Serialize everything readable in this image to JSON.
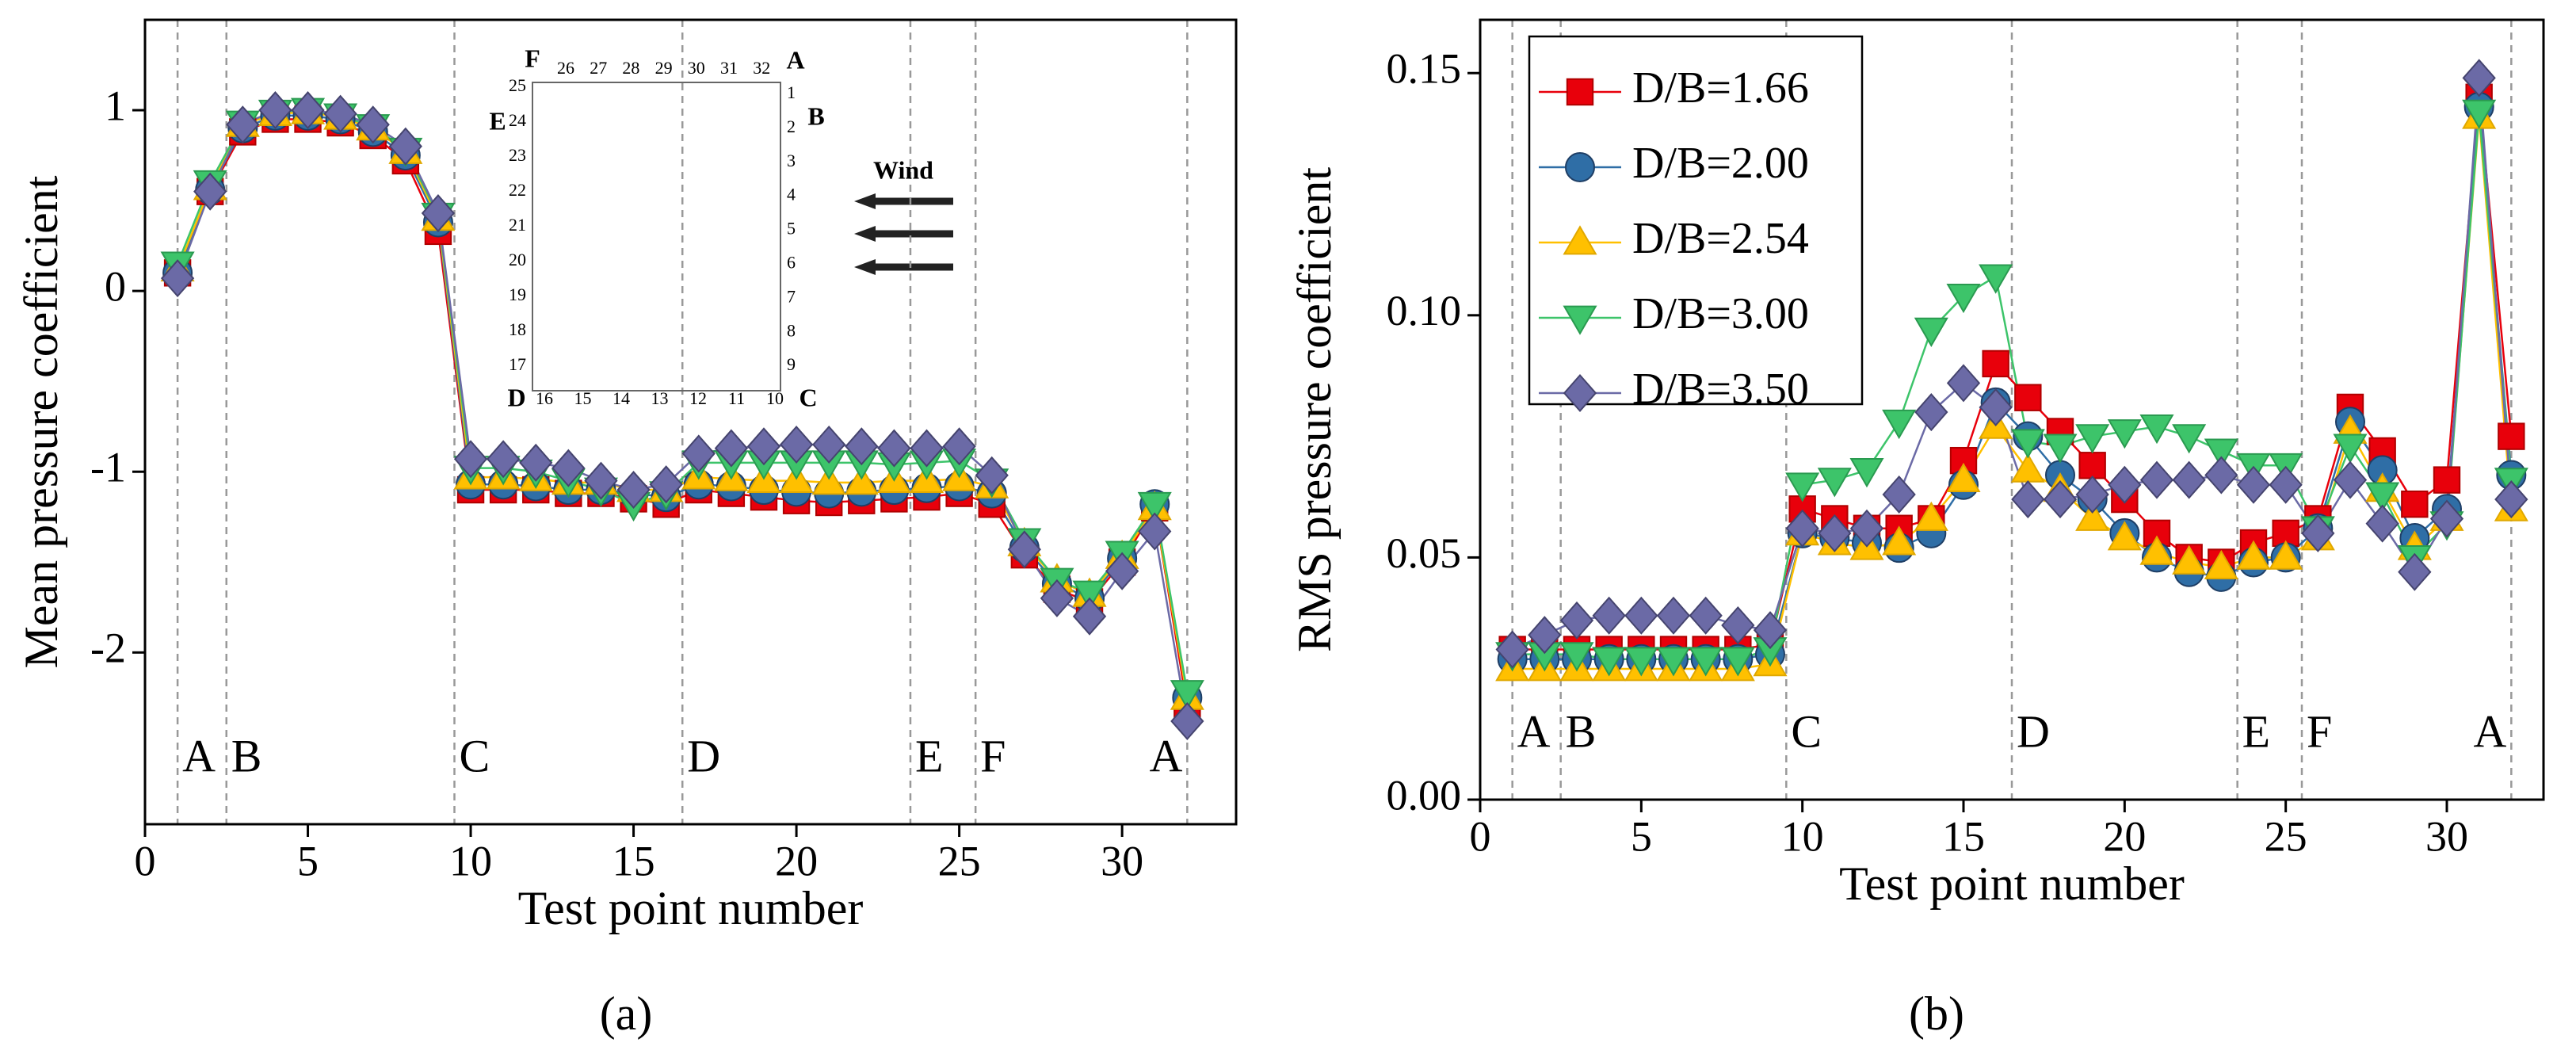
{
  "chart_data": [
    {
      "type": "line",
      "panel_label": "(a)",
      "x_label": "Test point number",
      "y_label": "Mean pressure coefficient",
      "x": [
        1,
        2,
        3,
        4,
        5,
        6,
        7,
        8,
        9,
        10,
        11,
        12,
        13,
        14,
        15,
        16,
        17,
        18,
        19,
        20,
        21,
        22,
        23,
        24,
        25,
        26,
        27,
        28,
        29,
        30,
        31,
        32
      ],
      "xlim": [
        0,
        33.5
      ],
      "xticks": [
        0,
        5,
        10,
        15,
        20,
        25,
        30
      ],
      "ylim": [
        -2.95,
        1.5
      ],
      "yticks": [
        -2,
        -1,
        0,
        1
      ],
      "section_lines": [
        1,
        2.5,
        9.5,
        16.5,
        23.5,
        25.5,
        32
      ],
      "section_labels": [
        "A",
        "B",
        "C",
        "D",
        "E",
        "F",
        "A"
      ],
      "inset": {
        "corners": [
          "A",
          "B",
          "C",
          "D",
          "E",
          "F"
        ],
        "points": [
          "1",
          "2",
          "3",
          "4",
          "5",
          "6",
          "7",
          "8",
          "9",
          "10",
          "11",
          "12",
          "13",
          "14",
          "15",
          "16",
          "17",
          "18",
          "19",
          "20",
          "21",
          "22",
          "23",
          "24",
          "25",
          "26",
          "27",
          "28",
          "29",
          "30",
          "31",
          "32"
        ],
        "wind": "Wind"
      },
      "series": [
        {
          "color": "#e8000b",
          "edge": "#b00000",
          "marker": "square",
          "values": [
            0.1,
            0.55,
            0.88,
            0.95,
            0.95,
            0.93,
            0.86,
            0.72,
            0.33,
            -1.1,
            -1.1,
            -1.1,
            -1.12,
            -1.12,
            -1.15,
            -1.18,
            -1.1,
            -1.12,
            -1.14,
            -1.16,
            -1.17,
            -1.16,
            -1.15,
            -1.14,
            -1.12,
            -1.18,
            -1.46,
            -1.65,
            -1.72,
            -1.5,
            -1.2,
            -2.3
          ]
        },
        {
          "color": "#2f6ea6",
          "edge": "#1f3f66",
          "marker": "circle",
          "values": [
            0.1,
            0.56,
            0.9,
            0.97,
            0.97,
            0.95,
            0.88,
            0.75,
            0.38,
            -1.07,
            -1.07,
            -1.08,
            -1.1,
            -1.1,
            -1.12,
            -1.14,
            -1.07,
            -1.08,
            -1.1,
            -1.11,
            -1.12,
            -1.11,
            -1.1,
            -1.09,
            -1.08,
            -1.12,
            -1.42,
            -1.62,
            -1.7,
            -1.48,
            -1.18,
            -2.25
          ]
        },
        {
          "color": "#ffc000",
          "edge": "#e0a800",
          "marker": "triangle",
          "values": [
            0.12,
            0.57,
            0.92,
            0.98,
            0.99,
            0.96,
            0.9,
            0.77,
            0.4,
            -1.03,
            -1.03,
            -1.04,
            -1.06,
            -1.06,
            -1.1,
            -1.1,
            -1.03,
            -1.04,
            -1.05,
            -1.05,
            -1.06,
            -1.06,
            -1.05,
            -1.05,
            -1.04,
            -1.08,
            -1.4,
            -1.6,
            -1.68,
            -1.47,
            -1.2,
            -2.25
          ]
        },
        {
          "color": "#3dc46a",
          "edge": "#2a9a50",
          "marker": "triangle-down",
          "values": [
            0.15,
            0.6,
            0.93,
            0.99,
            1.0,
            0.97,
            0.91,
            0.78,
            0.42,
            -0.98,
            -0.98,
            -1.0,
            -1.05,
            -1.1,
            -1.18,
            -1.12,
            -0.95,
            -0.95,
            -0.95,
            -0.95,
            -0.95,
            -0.95,
            -0.96,
            -0.95,
            -0.94,
            -1.05,
            -1.38,
            -1.6,
            -1.67,
            -1.45,
            -1.18,
            -2.22
          ]
        },
        {
          "color": "#6b6aa6",
          "edge": "#45446e",
          "marker": "diamond",
          "values": [
            0.07,
            0.55,
            0.92,
            1.0,
            1.0,
            0.98,
            0.92,
            0.8,
            0.43,
            -0.93,
            -0.93,
            -0.95,
            -0.98,
            -1.05,
            -1.1,
            -1.07,
            -0.9,
            -0.87,
            -0.86,
            -0.85,
            -0.85,
            -0.86,
            -0.87,
            -0.87,
            -0.86,
            -1.02,
            -1.43,
            -1.7,
            -1.8,
            -1.55,
            -1.33,
            -2.38
          ]
        }
      ]
    },
    {
      "type": "line",
      "panel_label": "(b)",
      "x_label": "Test point number",
      "y_label": "RMS pressure coefficient",
      "x": [
        1,
        2,
        3,
        4,
        5,
        6,
        7,
        8,
        9,
        10,
        11,
        12,
        13,
        14,
        15,
        16,
        17,
        18,
        19,
        20,
        21,
        22,
        23,
        24,
        25,
        26,
        27,
        28,
        29,
        30,
        31,
        32
      ],
      "xlim": [
        0,
        33
      ],
      "xticks": [
        0,
        5,
        10,
        15,
        20,
        25,
        30
      ],
      "ylim": [
        0,
        0.161
      ],
      "yticks": [
        {
          "value": 0,
          "label": "0.00"
        },
        0.05,
        {
          "value": 0.1,
          "label": "0.10"
        },
        0.15
      ],
      "section_lines": [
        1,
        2.5,
        9.5,
        16.5,
        23.5,
        25.5,
        32
      ],
      "section_labels": [
        "A",
        "B",
        "C",
        "D",
        "E",
        "F",
        "A"
      ],
      "legend": "upper left",
      "series": [
        {
          "name": "D/B=1.66",
          "color": "#e8000b",
          "edge": "#b00000",
          "marker": "square",
          "values": [
            0.031,
            0.031,
            0.031,
            0.031,
            0.031,
            0.031,
            0.031,
            0.031,
            0.032,
            0.06,
            0.058,
            0.056,
            0.056,
            0.058,
            0.07,
            0.09,
            0.083,
            0.076,
            0.069,
            0.062,
            0.055,
            0.05,
            0.049,
            0.053,
            0.055,
            0.058,
            0.081,
            0.072,
            0.061,
            0.066,
            0.145,
            0.075
          ]
        },
        {
          "name": "D/B=2.00",
          "color": "#2f6ea6",
          "edge": "#1f3f66",
          "marker": "circle",
          "values": [
            0.029,
            0.029,
            0.029,
            0.029,
            0.029,
            0.029,
            0.029,
            0.029,
            0.03,
            0.055,
            0.054,
            0.053,
            0.052,
            0.055,
            0.065,
            0.082,
            0.075,
            0.067,
            0.062,
            0.055,
            0.05,
            0.047,
            0.046,
            0.049,
            0.05,
            0.056,
            0.078,
            0.068,
            0.054,
            0.06,
            0.143,
            0.067
          ]
        },
        {
          "name": "D/B=2.54",
          "color": "#ffc000",
          "edge": "#e0a800",
          "marker": "triangle",
          "values": [
            0.027,
            0.027,
            0.027,
            0.027,
            0.027,
            0.027,
            0.027,
            0.027,
            0.028,
            0.055,
            0.053,
            0.052,
            0.053,
            0.058,
            0.066,
            0.077,
            0.068,
            0.064,
            0.058,
            0.054,
            0.051,
            0.049,
            0.048,
            0.05,
            0.05,
            0.054,
            0.076,
            0.064,
            0.052,
            0.058,
            0.141,
            0.06
          ]
        },
        {
          "name": "D/B=3.00",
          "color": "#3dc46a",
          "edge": "#2a9a50",
          "marker": "triangle-down",
          "values": [
            0.03,
            0.03,
            0.03,
            0.029,
            0.029,
            0.029,
            0.029,
            0.029,
            0.031,
            0.065,
            0.066,
            0.068,
            0.078,
            0.097,
            0.104,
            0.108,
            0.074,
            0.073,
            0.075,
            0.076,
            0.077,
            0.075,
            0.072,
            0.069,
            0.069,
            0.056,
            0.073,
            0.063,
            0.05,
            0.057,
            0.142,
            0.066
          ]
        },
        {
          "name": "D/B=3.50",
          "color": "#6b6aa6",
          "edge": "#45446e",
          "marker": "diamond",
          "values": [
            0.031,
            0.034,
            0.037,
            0.038,
            0.038,
            0.038,
            0.038,
            0.036,
            0.035,
            0.056,
            0.055,
            0.056,
            0.063,
            0.08,
            0.086,
            0.081,
            0.062,
            0.062,
            0.063,
            0.065,
            0.066,
            0.066,
            0.067,
            0.065,
            0.065,
            0.055,
            0.066,
            0.057,
            0.047,
            0.058,
            0.149,
            0.062
          ]
        }
      ]
    }
  ]
}
